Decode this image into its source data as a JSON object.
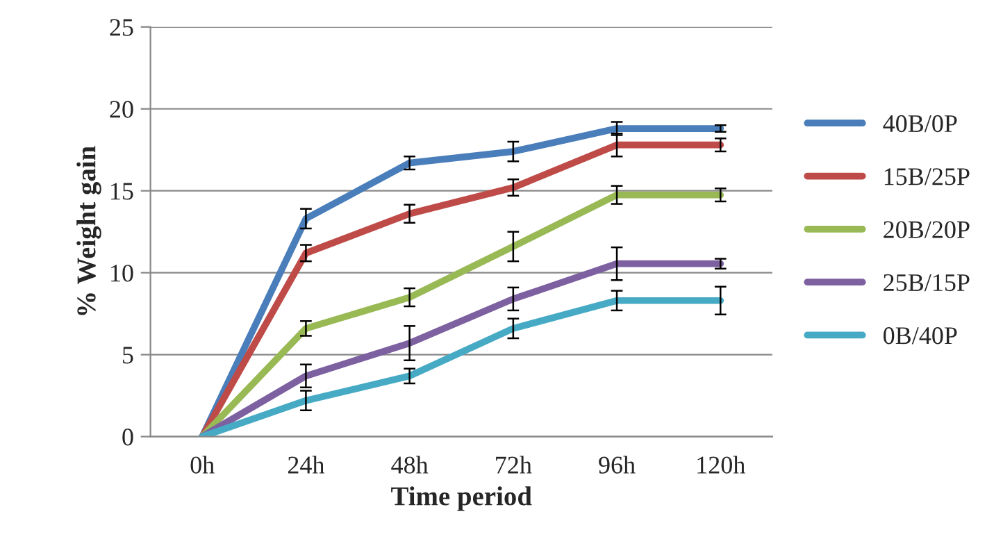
{
  "chart_data": {
    "type": "line",
    "xlabel": "Time period",
    "ylabel": "% Weight gain",
    "categories": [
      "0h",
      "24h",
      "48h",
      "72h",
      "96h",
      "120h"
    ],
    "ylim": [
      0,
      25
    ],
    "yticks": [
      0,
      5,
      10,
      15,
      20,
      25
    ],
    "grid": "y",
    "legend": "right",
    "marker": "none",
    "line_style": "solid",
    "series": [
      {
        "name": "40B/0P",
        "color": "#4a7ebb",
        "values": [
          0,
          13.3,
          16.7,
          17.4,
          18.8,
          18.8
        ],
        "errors": [
          null,
          0.6,
          0.4,
          0.6,
          0.4,
          0.2
        ]
      },
      {
        "name": "15B/25P",
        "color": "#be4b48",
        "values": [
          0,
          11.2,
          13.6,
          15.2,
          17.8,
          17.8
        ],
        "errors": [
          null,
          0.5,
          0.55,
          0.5,
          0.7,
          0.4
        ]
      },
      {
        "name": "20B/20P",
        "color": "#98b954",
        "values": [
          0,
          6.6,
          8.5,
          11.6,
          14.75,
          14.75
        ],
        "errors": [
          null,
          0.45,
          0.55,
          0.9,
          0.55,
          0.4
        ]
      },
      {
        "name": "25B/15P",
        "color": "#7d60a0",
        "values": [
          0,
          3.7,
          5.7,
          8.4,
          10.55,
          10.55
        ],
        "errors": [
          null,
          0.7,
          1.05,
          0.7,
          1.0,
          0.3
        ]
      },
      {
        "name": "0B/40P",
        "color": "#46aac5",
        "values": [
          0,
          2.2,
          3.7,
          6.6,
          8.3,
          8.3
        ],
        "errors": [
          null,
          0.6,
          0.45,
          0.6,
          0.6,
          0.85
        ]
      }
    ]
  }
}
